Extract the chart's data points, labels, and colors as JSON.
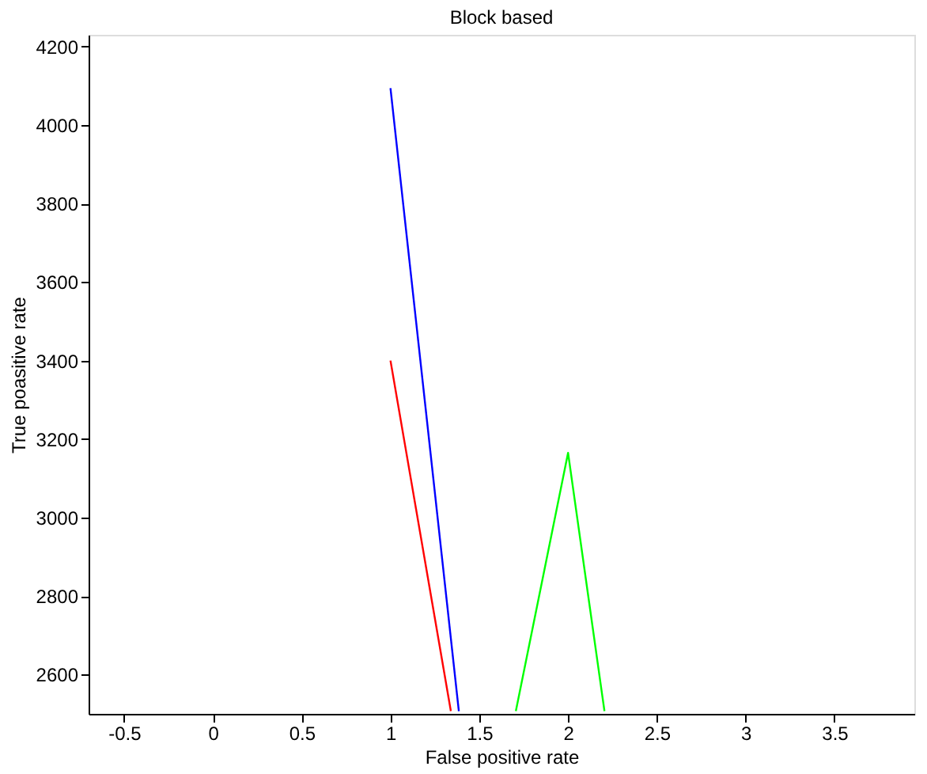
{
  "chart_data": {
    "type": "line",
    "title": "Block based",
    "xlabel": "False positive rate",
    "ylabel": "True poasitive rate",
    "series": [
      {
        "color": "#ff0000",
        "x": [
          1,
          1.34
        ],
        "values": [
          3400,
          2507
        ]
      },
      {
        "color": "#0000ff",
        "x": [
          1,
          1.385
        ],
        "values": [
          4094,
          2507
        ]
      },
      {
        "color": "#00ff00",
        "x": [
          1.706,
          2,
          2.205
        ],
        "values": [
          2507,
          3165,
          2507
        ]
      }
    ],
    "xlim": [
      -0.7,
      3.95
    ],
    "ylim": [
      2500,
      4230
    ],
    "xticks": [
      -0.5,
      0,
      0.5,
      1,
      1.5,
      2,
      2.5,
      3,
      3.5
    ],
    "yticks": [
      2600,
      2800,
      3000,
      3200,
      3400,
      3600,
      3800,
      4000,
      4200
    ],
    "grid": false,
    "legend": false,
    "marker": "none",
    "line_style": "solid"
  }
}
